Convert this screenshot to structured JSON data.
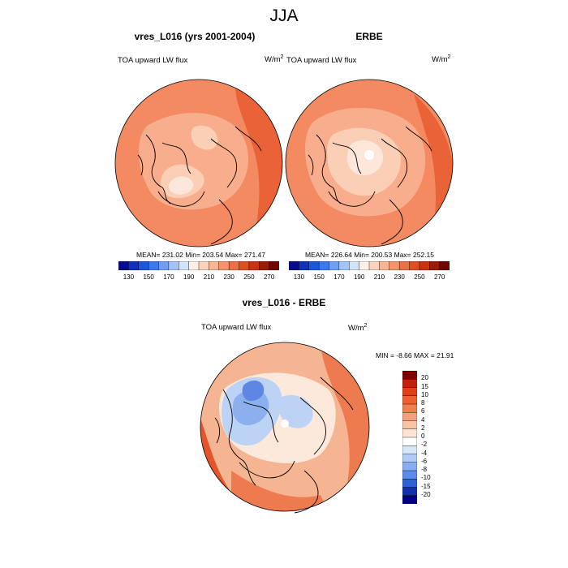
{
  "figure": {
    "title": "JJA",
    "panels": [
      {
        "title": "vres_L016 (yrs 2001-2004)",
        "variable": "TOA upward LW flux",
        "units": "W/m",
        "units_exp": "2",
        "stats": "MEAN= 231.02  Min= 203.54  Max= 271.47"
      },
      {
        "title": "ERBE",
        "variable": "TOA upward LW flux",
        "units": "W/m",
        "units_exp": "2",
        "stats": "MEAN= 226.64  Min= 200.53  Max= 252.15"
      },
      {
        "title": "vres_L016 - ERBE",
        "variable": "TOA upward LW flux",
        "units": "W/m",
        "units_exp": "2",
        "stats": "MIN =  -8.66 MAX =  21.91"
      }
    ],
    "colorbar_abs": {
      "labels": [
        "130",
        "150",
        "170",
        "190",
        "210",
        "230",
        "250",
        "270"
      ],
      "colors": [
        "#0a0a8c",
        "#1030c0",
        "#1e55e0",
        "#3c78f0",
        "#6e9ff5",
        "#a5c3fa",
        "#d2e3fc",
        "#fdeee6",
        "#fcd3be",
        "#f8b596",
        "#f4936c",
        "#ee6f45",
        "#e44d22",
        "#c93212",
        "#a01a08",
        "#700600"
      ]
    },
    "colorbar_diff": {
      "labels": [
        "20",
        "15",
        "10",
        "8",
        "6",
        "4",
        "2",
        "0",
        "-2",
        "-4",
        "-6",
        "-8",
        "-10",
        "-15",
        "-20"
      ],
      "colors": [
        "#800000",
        "#c02010",
        "#e04018",
        "#ec6030",
        "#f08050",
        "#f4a078",
        "#f8c4a6",
        "#fce3d3",
        "#ffffff",
        "#d8e6fa",
        "#b0ccf5",
        "#86aef0",
        "#5a8cea",
        "#2e60d8",
        "#1030b0",
        "#000080"
      ]
    },
    "map_colors": {
      "abs_base": "#f38a62",
      "abs_warm": "#ea6238",
      "abs_light": "#f8ae8c",
      "abs_lighter": "#fbcfb6",
      "abs_pale": "#fde6da",
      "diff_base": "#f6b592",
      "diff_warm": "#ee7b50",
      "diff_hot": "#e4532a",
      "diff_neutral": "#fde8dc",
      "diff_cool": "#bcd3f5",
      "diff_cooler": "#8bb0ed",
      "diff_coolest": "#5d87e3",
      "coastline": "#000000"
    }
  }
}
